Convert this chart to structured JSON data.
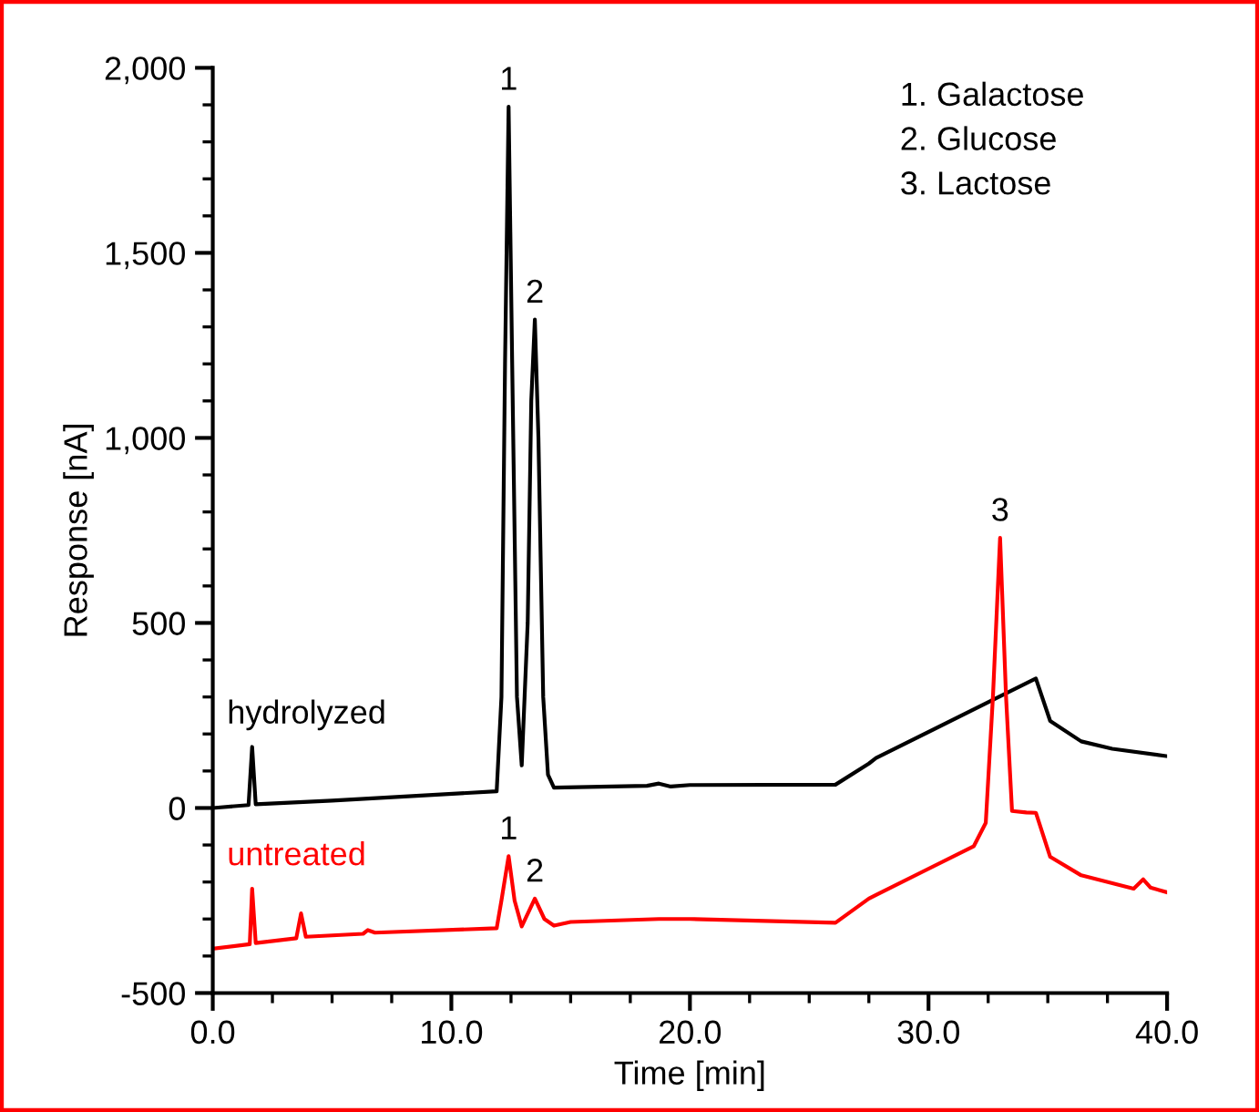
{
  "chart_data": {
    "type": "line",
    "xlabel": "Time [min]",
    "ylabel": "Response [nA]",
    "xlim": [
      0,
      40
    ],
    "ylim": [
      -500,
      2000
    ],
    "xticks": [
      {
        "value": 0,
        "label": "0.0"
      },
      {
        "value": 2.5,
        "label": null
      },
      {
        "value": 5,
        "label": null
      },
      {
        "value": 7.5,
        "label": null
      },
      {
        "value": 10,
        "label": "10.0"
      },
      {
        "value": 12.5,
        "label": null
      },
      {
        "value": 15,
        "label": null
      },
      {
        "value": 17.5,
        "label": null
      },
      {
        "value": 20,
        "label": "20.0"
      },
      {
        "value": 22.5,
        "label": null
      },
      {
        "value": 25,
        "label": null
      },
      {
        "value": 27.5,
        "label": null
      },
      {
        "value": 30,
        "label": "30.0"
      },
      {
        "value": 32.5,
        "label": null
      },
      {
        "value": 35,
        "label": null
      },
      {
        "value": 37.5,
        "label": null
      },
      {
        "value": 40,
        "label": "40.0"
      }
    ],
    "yticks": [
      {
        "value": -500,
        "label": "-500"
      },
      {
        "value": -400,
        "label": null
      },
      {
        "value": -300,
        "label": null
      },
      {
        "value": -200,
        "label": null
      },
      {
        "value": -100,
        "label": null
      },
      0,
      {
        "value": 100,
        "label": null
      },
      {
        "value": 200,
        "label": null
      },
      {
        "value": 300,
        "label": null
      },
      {
        "value": 400,
        "label": null
      },
      500,
      {
        "value": 600,
        "label": null
      },
      {
        "value": 700,
        "label": null
      },
      {
        "value": 800,
        "label": null
      },
      {
        "value": 900,
        "label": null
      },
      {
        "value": 1000,
        "label": "1,000"
      },
      {
        "value": 1100,
        "label": null
      },
      {
        "value": 1200,
        "label": null
      },
      {
        "value": 1300,
        "label": null
      },
      {
        "value": 1400,
        "label": null
      },
      {
        "value": 1500,
        "label": "1,500"
      },
      {
        "value": 1600,
        "label": null
      },
      {
        "value": 1700,
        "label": null
      },
      {
        "value": 1800,
        "label": null
      },
      {
        "value": 1900,
        "label": null
      },
      {
        "value": 2000,
        "label": "2,000"
      }
    ],
    "grid": false,
    "legend": false,
    "marker": "none",
    "line_style": "solid",
    "series": [
      {
        "name": "hydrolyzed",
        "color": "#000000",
        "x": [
          0,
          1.5,
          1.65,
          1.8,
          5,
          11.9,
          12.1,
          12.25,
          12.4,
          12.55,
          12.75,
          12.95,
          13.2,
          13.35,
          13.5,
          13.65,
          13.85,
          14.05,
          14.3,
          18.2,
          18.7,
          19.2,
          20,
          26.1,
          27.5,
          27.8,
          34.5,
          35.1,
          36.4,
          37.7,
          40
        ],
        "values": [
          0,
          8,
          165,
          10,
          20,
          45,
          300,
          1200,
          1895,
          1200,
          300,
          115,
          500,
          1100,
          1320,
          1000,
          300,
          90,
          55,
          60,
          66,
          58,
          62,
          63,
          120,
          135,
          350,
          235,
          180,
          160,
          140
        ]
      },
      {
        "name": "untreated",
        "color": "#ff0000",
        "x": [
          0,
          1.55,
          1.65,
          1.8,
          3.5,
          3.7,
          3.9,
          6.3,
          6.5,
          6.8,
          11.9,
          12.1,
          12.4,
          12.65,
          12.95,
          13.5,
          13.9,
          14.3,
          15.0,
          18.7,
          20,
          26.1,
          27.5,
          27.8,
          31.9,
          32.4,
          32.7,
          33.0,
          33.25,
          33.5,
          34.1,
          34.5,
          35.1,
          36.4,
          38.6,
          39.0,
          39.3,
          40
        ],
        "values": [
          -380,
          -368,
          -218,
          -365,
          -352,
          -285,
          -348,
          -340,
          -330,
          -337,
          -325,
          -250,
          -130,
          -250,
          -320,
          -245,
          -300,
          -318,
          -308,
          -300,
          -300,
          -310,
          -245,
          -235,
          -103,
          -40,
          300,
          730,
          300,
          -8,
          -12,
          -13,
          -132,
          -182,
          -218,
          -193,
          -215,
          -228
        ]
      }
    ],
    "annotations": [
      {
        "text": "1",
        "x": 12.4,
        "y": 1895
      },
      {
        "text": "2",
        "x": 13.5,
        "y": 1320
      },
      {
        "text": "3",
        "x": 33.0,
        "y": 730
      },
      {
        "text": "1",
        "x": 12.4,
        "y": -130
      },
      {
        "text": "2",
        "x": 13.5,
        "y": -245
      },
      "1. Galactose",
      "2. Glucose",
      "3. Lactose"
    ]
  }
}
